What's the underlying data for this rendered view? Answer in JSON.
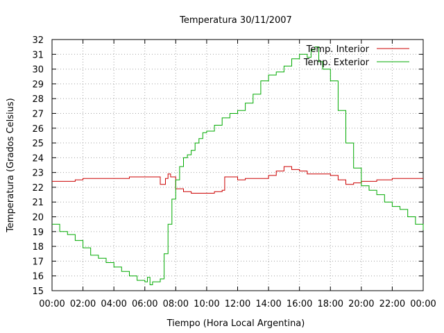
{
  "chart_data": {
    "type": "line",
    "title": "Temperatura 30/11/2007",
    "xlabel": "Tiempo (Hora Local Argentina)",
    "ylabel": "Temperatura (Grados Celsius)",
    "xlim": [
      "00:00",
      "24:00"
    ],
    "ylim": [
      15,
      32
    ],
    "x_ticks": [
      "00:00",
      "02:00",
      "04:00",
      "06:00",
      "08:00",
      "10:00",
      "12:00",
      "14:00",
      "16:00",
      "18:00",
      "20:00",
      "22:00",
      "00:00"
    ],
    "y_ticks": [
      "15",
      "16",
      "17",
      "18",
      "19",
      "20",
      "21",
      "22",
      "23",
      "24",
      "25",
      "26",
      "27",
      "28",
      "29",
      "30",
      "31",
      "32"
    ],
    "grid": true,
    "legend_position": "top-right",
    "series": [
      {
        "name": "Temp. Interior",
        "color": "#cc0000",
        "x": [
          "00:00",
          "01:30",
          "02:00",
          "03:30",
          "04:00",
          "05:00",
          "06:00",
          "06:50",
          "07:00",
          "07:20",
          "07:30",
          "07:40",
          "08:00",
          "08:30",
          "09:00",
          "09:30",
          "10:00",
          "10:30",
          "11:00",
          "11:10",
          "11:30",
          "12:00",
          "12:30",
          "13:00",
          "13:30",
          "14:00",
          "14:30",
          "15:00",
          "15:30",
          "16:00",
          "16:30",
          "17:00",
          "17:30",
          "18:00",
          "18:30",
          "19:00",
          "19:30",
          "20:00",
          "21:00",
          "22:00",
          "23:00",
          "24:00"
        ],
        "values": [
          22.4,
          22.5,
          22.6,
          22.6,
          22.6,
          22.7,
          22.7,
          22.7,
          22.2,
          22.6,
          22.9,
          22.7,
          21.9,
          21.7,
          21.6,
          21.6,
          21.6,
          21.7,
          21.8,
          22.7,
          22.7,
          22.5,
          22.6,
          22.6,
          22.6,
          22.8,
          23.1,
          23.4,
          23.2,
          23.1,
          22.9,
          22.9,
          22.9,
          22.8,
          22.5,
          22.2,
          22.3,
          22.4,
          22.5,
          22.6,
          22.6,
          22.6
        ]
      },
      {
        "name": "Temp. Exterior",
        "color": "#00aa00",
        "x": [
          "00:00",
          "00:30",
          "01:00",
          "01:30",
          "02:00",
          "02:30",
          "03:00",
          "03:30",
          "04:00",
          "04:30",
          "05:00",
          "05:30",
          "06:00",
          "06:10",
          "06:20",
          "06:30",
          "06:45",
          "07:00",
          "07:15",
          "07:30",
          "07:45",
          "08:00",
          "08:15",
          "08:30",
          "08:45",
          "09:00",
          "09:15",
          "09:30",
          "09:45",
          "10:00",
          "10:30",
          "11:00",
          "11:30",
          "12:00",
          "12:30",
          "13:00",
          "13:30",
          "14:00",
          "14:30",
          "15:00",
          "15:30",
          "16:00",
          "16:30",
          "16:45",
          "17:00",
          "17:15",
          "17:30",
          "18:00",
          "18:30",
          "19:00",
          "19:30",
          "20:00",
          "20:30",
          "21:00",
          "21:30",
          "22:00",
          "22:30",
          "23:00",
          "23:30",
          "24:00"
        ],
        "values": [
          19.5,
          19.0,
          18.8,
          18.4,
          17.9,
          17.4,
          17.2,
          16.9,
          16.6,
          16.3,
          16.0,
          15.7,
          15.6,
          15.9,
          15.4,
          15.6,
          15.6,
          15.8,
          17.5,
          19.5,
          21.2,
          22.5,
          23.4,
          24.0,
          24.2,
          24.5,
          25.0,
          25.3,
          25.7,
          25.8,
          26.2,
          26.7,
          27.0,
          27.2,
          27.7,
          28.3,
          29.2,
          29.6,
          29.8,
          30.2,
          30.7,
          31.0,
          30.8,
          31.3,
          31.5,
          30.5,
          30.0,
          29.2,
          27.2,
          25.0,
          23.3,
          22.1,
          21.8,
          21.5,
          21.0,
          20.7,
          20.5,
          20.0,
          19.5,
          19.1
        ]
      }
    ]
  }
}
